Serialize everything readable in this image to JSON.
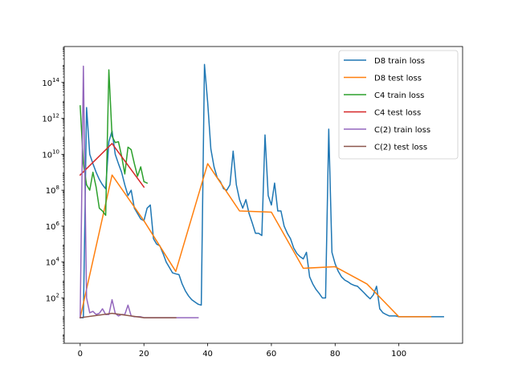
{
  "chart_data": {
    "type": "line",
    "title": "",
    "xlabel": "",
    "ylabel": "",
    "xlim": [
      -5,
      120
    ],
    "ylim": [
      0.3,
      1e+16
    ],
    "yscale": "log",
    "grid": false,
    "legend_position": "upper right",
    "xticks": [
      {
        "value": 0,
        "label": "0"
      },
      {
        "value": 20,
        "label": "20"
      },
      {
        "value": 40,
        "label": "40"
      },
      {
        "value": 60,
        "label": "60"
      },
      {
        "value": 80,
        "label": "80"
      },
      {
        "value": 100,
        "label": "100"
      }
    ],
    "yticks": [
      {
        "value": 100,
        "base": "10",
        "exp": "2"
      },
      {
        "value": 10000,
        "base": "10",
        "exp": "4"
      },
      {
        "value": 1000000,
        "base": "10",
        "exp": "6"
      },
      {
        "value": 100000000,
        "base": "10",
        "exp": "8"
      },
      {
        "value": 10000000000,
        "base": "10",
        "exp": "10"
      },
      {
        "value": 1000000000000,
        "base": "10",
        "exp": "12"
      },
      {
        "value": 100000000000000,
        "base": "10",
        "exp": "14"
      }
    ],
    "series": [
      {
        "name": "D8 train loss",
        "color": "#1f77b4",
        "points": [
          [
            0,
            8
          ],
          [
            1,
            8
          ],
          [
            2,
            4000000000000.0
          ],
          [
            3,
            10000000000.0
          ],
          [
            4,
            3000000000.0
          ],
          [
            5,
            1000000000.0
          ],
          [
            6,
            400000000.0
          ],
          [
            7,
            200000000.0
          ],
          [
            8,
            120000000.0
          ],
          [
            9,
            50000000000.0
          ],
          [
            10,
            200000000000.0
          ],
          [
            11,
            10000000000.0
          ],
          [
            12,
            3000000000.0
          ],
          [
            13,
            1000000000.0
          ],
          [
            14,
            200000000.0
          ],
          [
            15,
            50000000.0
          ],
          [
            16,
            100000000.0
          ],
          [
            17,
            10000000.0
          ],
          [
            18,
            5000000.0
          ],
          [
            19,
            2500000.0
          ],
          [
            20,
            2000000.0
          ],
          [
            21,
            10000000.0
          ],
          [
            22,
            15000000.0
          ],
          [
            23,
            200000.0
          ],
          [
            24,
            100000.0
          ],
          [
            25,
            80000.0
          ],
          [
            26,
            30000.0
          ],
          [
            27,
            10000.0
          ],
          [
            28,
            5000.0
          ],
          [
            29,
            2500.0
          ],
          [
            30,
            2200.0
          ],
          [
            31,
            2000.0
          ],
          [
            32,
            600
          ],
          [
            33,
            250
          ],
          [
            34,
            130
          ],
          [
            35,
            80
          ],
          [
            36,
            60
          ],
          [
            37,
            45
          ],
          [
            38,
            40
          ],
          [
            39,
            1000000000000000.0
          ],
          [
            40,
            8000000000000.0
          ],
          [
            41,
            20000000000.0
          ],
          [
            42,
            2000000000.0
          ],
          [
            43,
            500000000.0
          ],
          [
            44,
            300000000.0
          ],
          [
            45,
            120000000.0
          ],
          [
            46,
            100000000.0
          ],
          [
            47,
            200000000.0
          ],
          [
            48,
            15000000000.0
          ],
          [
            49,
            200000000.0
          ],
          [
            50,
            30000000.0
          ],
          [
            51,
            10000000.0
          ],
          [
            52,
            30000000.0
          ],
          [
            53,
            5000000.0
          ],
          [
            54,
            1500000.0
          ],
          [
            55,
            400000.0
          ],
          [
            56,
            400000.0
          ],
          [
            57,
            300000.0
          ],
          [
            58,
            120000000000.0
          ],
          [
            59,
            50000000.0
          ],
          [
            60,
            15000000.0
          ],
          [
            61,
            250000000.0
          ],
          [
            62,
            7000000.0
          ],
          [
            63,
            7000000.0
          ],
          [
            64,
            1000000.0
          ],
          [
            65,
            400000.0
          ],
          [
            66,
            200000.0
          ],
          [
            67,
            60000.0
          ],
          [
            68,
            30000.0
          ],
          [
            69,
            20000.0
          ],
          [
            70,
            15000.0
          ],
          [
            71,
            35000.0
          ],
          [
            72,
            1500.0
          ],
          [
            73,
            600
          ],
          [
            74,
            300
          ],
          [
            75,
            180
          ],
          [
            76,
            100
          ],
          [
            77,
            100
          ],
          [
            78,
            250000000000.0
          ],
          [
            79,
            35000.0
          ],
          [
            80,
            8000.0
          ],
          [
            81,
            3000.0
          ],
          [
            82,
            1500.0
          ],
          [
            83,
            1000.0
          ],
          [
            84,
            800
          ],
          [
            85,
            600
          ],
          [
            86,
            500
          ],
          [
            87,
            450
          ],
          [
            88,
            300
          ],
          [
            89,
            200
          ],
          [
            90,
            130
          ],
          [
            91,
            90
          ],
          [
            92,
            150
          ],
          [
            93,
            450
          ],
          [
            94,
            25
          ],
          [
            95,
            15
          ],
          [
            96,
            12
          ],
          [
            97,
            10
          ],
          [
            98,
            10
          ],
          [
            99,
            10
          ],
          [
            100,
            9
          ],
          [
            101,
            9
          ],
          [
            102,
            9
          ],
          [
            103,
            9
          ],
          [
            104,
            9
          ],
          [
            105,
            9
          ],
          [
            106,
            9
          ],
          [
            107,
            9
          ],
          [
            108,
            9
          ],
          [
            109,
            9
          ],
          [
            110,
            9
          ],
          [
            111,
            9
          ],
          [
            112,
            9
          ],
          [
            113,
            9
          ],
          [
            114,
            9
          ]
        ]
      },
      {
        "name": "D8 test loss",
        "color": "#ff7f0e",
        "points": [
          [
            0,
            8
          ],
          [
            10,
            700000000.0
          ],
          [
            20,
            2000000.0
          ],
          [
            30,
            3000.0
          ],
          [
            40,
            3000000000.0
          ],
          [
            50,
            7000000.0
          ],
          [
            60,
            6000000.0
          ],
          [
            70,
            4500.0
          ],
          [
            80,
            5500.0
          ],
          [
            90,
            600
          ],
          [
            100,
            9
          ],
          [
            110,
            9
          ]
        ]
      },
      {
        "name": "C4 train loss",
        "color": "#2ca02c",
        "points": [
          [
            0,
            5000000000000.0
          ],
          [
            1,
            3000000000.0
          ],
          [
            2,
            200000000.0
          ],
          [
            3,
            100000000.0
          ],
          [
            4,
            1000000000.0
          ],
          [
            5,
            150000000.0
          ],
          [
            6,
            10000000.0
          ],
          [
            7,
            7000000.0
          ],
          [
            8,
            4000000.0
          ],
          [
            9,
            500000000000000.0
          ],
          [
            10,
            100000000000.0
          ],
          [
            11,
            45000000000.0
          ],
          [
            12,
            50000000000.0
          ],
          [
            13,
            8000000000.0
          ],
          [
            14,
            800000000.0
          ],
          [
            15,
            25000000000.0
          ],
          [
            16,
            18000000000.0
          ],
          [
            17,
            3000000000.0
          ],
          [
            18,
            600000000.0
          ],
          [
            19,
            2000000000.0
          ],
          [
            20,
            300000000.0
          ],
          [
            21,
            250000000.0
          ]
        ]
      },
      {
        "name": "C4 test loss",
        "color": "#d62728",
        "points": [
          [
            0,
            700000000.0
          ],
          [
            10,
            40000000000.0
          ],
          [
            20,
            150000000.0
          ]
        ]
      },
      {
        "name": "C(2) train loss",
        "color": "#9467bd",
        "points": [
          [
            0,
            8
          ],
          [
            1,
            800000000000000.0
          ],
          [
            2,
            100
          ],
          [
            3,
            15
          ],
          [
            4,
            18
          ],
          [
            5,
            12
          ],
          [
            6,
            14
          ],
          [
            7,
            25
          ],
          [
            8,
            12
          ],
          [
            9,
            12
          ],
          [
            10,
            80
          ],
          [
            11,
            14
          ],
          [
            12,
            10
          ],
          [
            13,
            12
          ],
          [
            14,
            12
          ],
          [
            15,
            40
          ],
          [
            16,
            10
          ],
          [
            17,
            9
          ],
          [
            18,
            9
          ],
          [
            19,
            9
          ],
          [
            20,
            8
          ],
          [
            22,
            8
          ],
          [
            25,
            8
          ],
          [
            30,
            8
          ],
          [
            35,
            8
          ],
          [
            37,
            8
          ]
        ]
      },
      {
        "name": "C(2) test loss",
        "color": "#8c564b",
        "points": [
          [
            0,
            8
          ],
          [
            10,
            14
          ],
          [
            20,
            8
          ],
          [
            30,
            8
          ]
        ]
      }
    ]
  }
}
